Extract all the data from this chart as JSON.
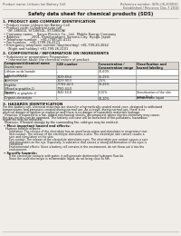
{
  "bg_color": "#f0ede8",
  "header_left": "Product name: Lithium Ion Battery Cell",
  "header_right_line1": "Reference number: SDS-LIB-200810",
  "header_right_line2": "Established / Revision: Dec.7.2010",
  "title": "Safety data sheet for chemical products (SDS)",
  "section1_title": "1. PRODUCT AND COMPANY IDENTIFICATION",
  "section1_lines": [
    "• Product name: Lithium Ion Battery Cell",
    "• Product code: Cylindrical-type cell",
    "    (SF-18650U, SY-18650L, SY-18650A)",
    "• Company name:    Sanyo Electric Co., Ltd.  Mobile Energy Company",
    "• Address:           2001, Kamitosakami, Sumoto-City, Hyogo, Japan",
    "• Telephone number:   +81-(799)-20-4111",
    "• Fax number:   +81-1799-26-4121",
    "• Emergency telephone number (daytime/day) +81-799-20-2662",
    "    (Night and holiday) +81-799-26-2101"
  ],
  "section2_title": "2. COMPOSITION / INFORMATION ON INGREDIENTS",
  "section2_sub1": "• Substance or preparation: Preparation",
  "section2_sub2": "  • Information about the chemical nature of product:",
  "table_col_headers": [
    "Component/chemical name",
    "CAS number",
    "Concentration /\nConcentration range",
    "Classification and\nhazard labeling"
  ],
  "table_sub_header": "Several name",
  "table_rows": [
    [
      "Lithium oxide/tantale\n(LiMn/Co/RNiO4)",
      "-",
      "30-60%",
      ""
    ],
    [
      "Iron",
      "7439-89-6",
      "15-25%",
      "-"
    ],
    [
      "Aluminum",
      "7429-90-5",
      "2-5%",
      "-"
    ],
    [
      "Graphite\n(Mixed w graphite-1)\n(At-50% w graphite-1)",
      "77782-42-5\n7782-44-0",
      "10-25%",
      "-"
    ],
    [
      "Copper",
      "7440-50-8",
      "5-15%",
      "Sensitization of the skin\ngroup No.2"
    ],
    [
      "Organic electrolyte",
      "-",
      "10-20%",
      "Inflammable liquid"
    ]
  ],
  "section3_title": "3. HAZARDS IDENTIFICATION",
  "section3_body_lines": [
    "For this battery cell, chemical materials are stored in a hermetically sealed metal case, designed to withstand",
    "temperatures and pressures created during normal use. As a result, during normal use, there is no",
    "physical danger of ignition or explosion and there is no danger of hazardous materials leakage.",
    "  However, if exposed to a fire, added mechanical shocks, decomposed, where electro-chemistry may cause,",
    "the gas insides can be operated. The battery cell case will be breached of fire-pollutants, hazardous",
    "materials may be released.",
    "  Moreover, if heated strongly by the surrounding fire, solid gas may be emitted."
  ],
  "section3_bullet1": "• Most important hazard and effects:",
  "section3_human": "Human health effects:",
  "section3_human_lines": [
    "    Inhalation: The release of the electrolyte has an anesthesia action and stimulates in respiratory tract.",
    "    Skin contact: The release of the electrolyte stimulates a skin. The electrolyte skin contact causes a",
    "    sore and stimulation on the skin.",
    "    Eye contact: The release of the electrolyte stimulates eyes. The electrolyte eye contact causes a sore",
    "    and stimulation on the eye. Especially, a substance that causes a strong inflammation of the eyes is",
    "    contained.",
    "    Environmental effects: Since a battery cell remains in the environment, do not throw out it into the",
    "    environment."
  ],
  "section3_specific": "• Specific hazards:",
  "section3_specific_lines": [
    "    If the electrolyte contacts with water, it will generate detrimental hydrogen fluoride.",
    "    Since the used electrolyte is inflammable liquid, do not bring close to fire."
  ],
  "text_color": "#1a1a1a",
  "header_color": "#555555",
  "line_color": "#aaaaaa",
  "table_border_color": "#888888",
  "table_header_bg": "#d8d4cc",
  "table_row_bg1": "#ffffff",
  "table_row_bg2": "#eae8e3"
}
